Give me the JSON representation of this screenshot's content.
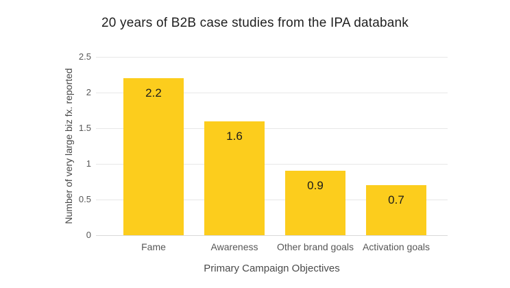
{
  "chart_data": {
    "type": "bar",
    "title": "20 years of B2B case studies from the IPA databank",
    "xlabel": "Primary Campaign Objectives",
    "ylabel": "Number of very large biz fx. reported",
    "categories": [
      "Fame",
      "Awareness",
      "Other brand goals",
      "Activation goals"
    ],
    "values": [
      2.2,
      1.6,
      0.9,
      0.7
    ],
    "value_labels": [
      "2.2",
      "1.6",
      "0.9",
      "0.7"
    ],
    "ylim": [
      0,
      2.5
    ],
    "yticks": [
      "0",
      "0.5",
      "1",
      "1.5",
      "2",
      "2.5"
    ],
    "grid": "horizontal",
    "legend_position": "none",
    "colors": {
      "bar": "#FCCD1D",
      "gridline": "#E7E7E7",
      "baseline": "#D9D9D9",
      "title_text": "#1F1F1F",
      "tick_text": "#565656",
      "axis_title_text": "#474747",
      "value_label_text": "#1B1B1B",
      "background": "#FFFFFF"
    }
  }
}
